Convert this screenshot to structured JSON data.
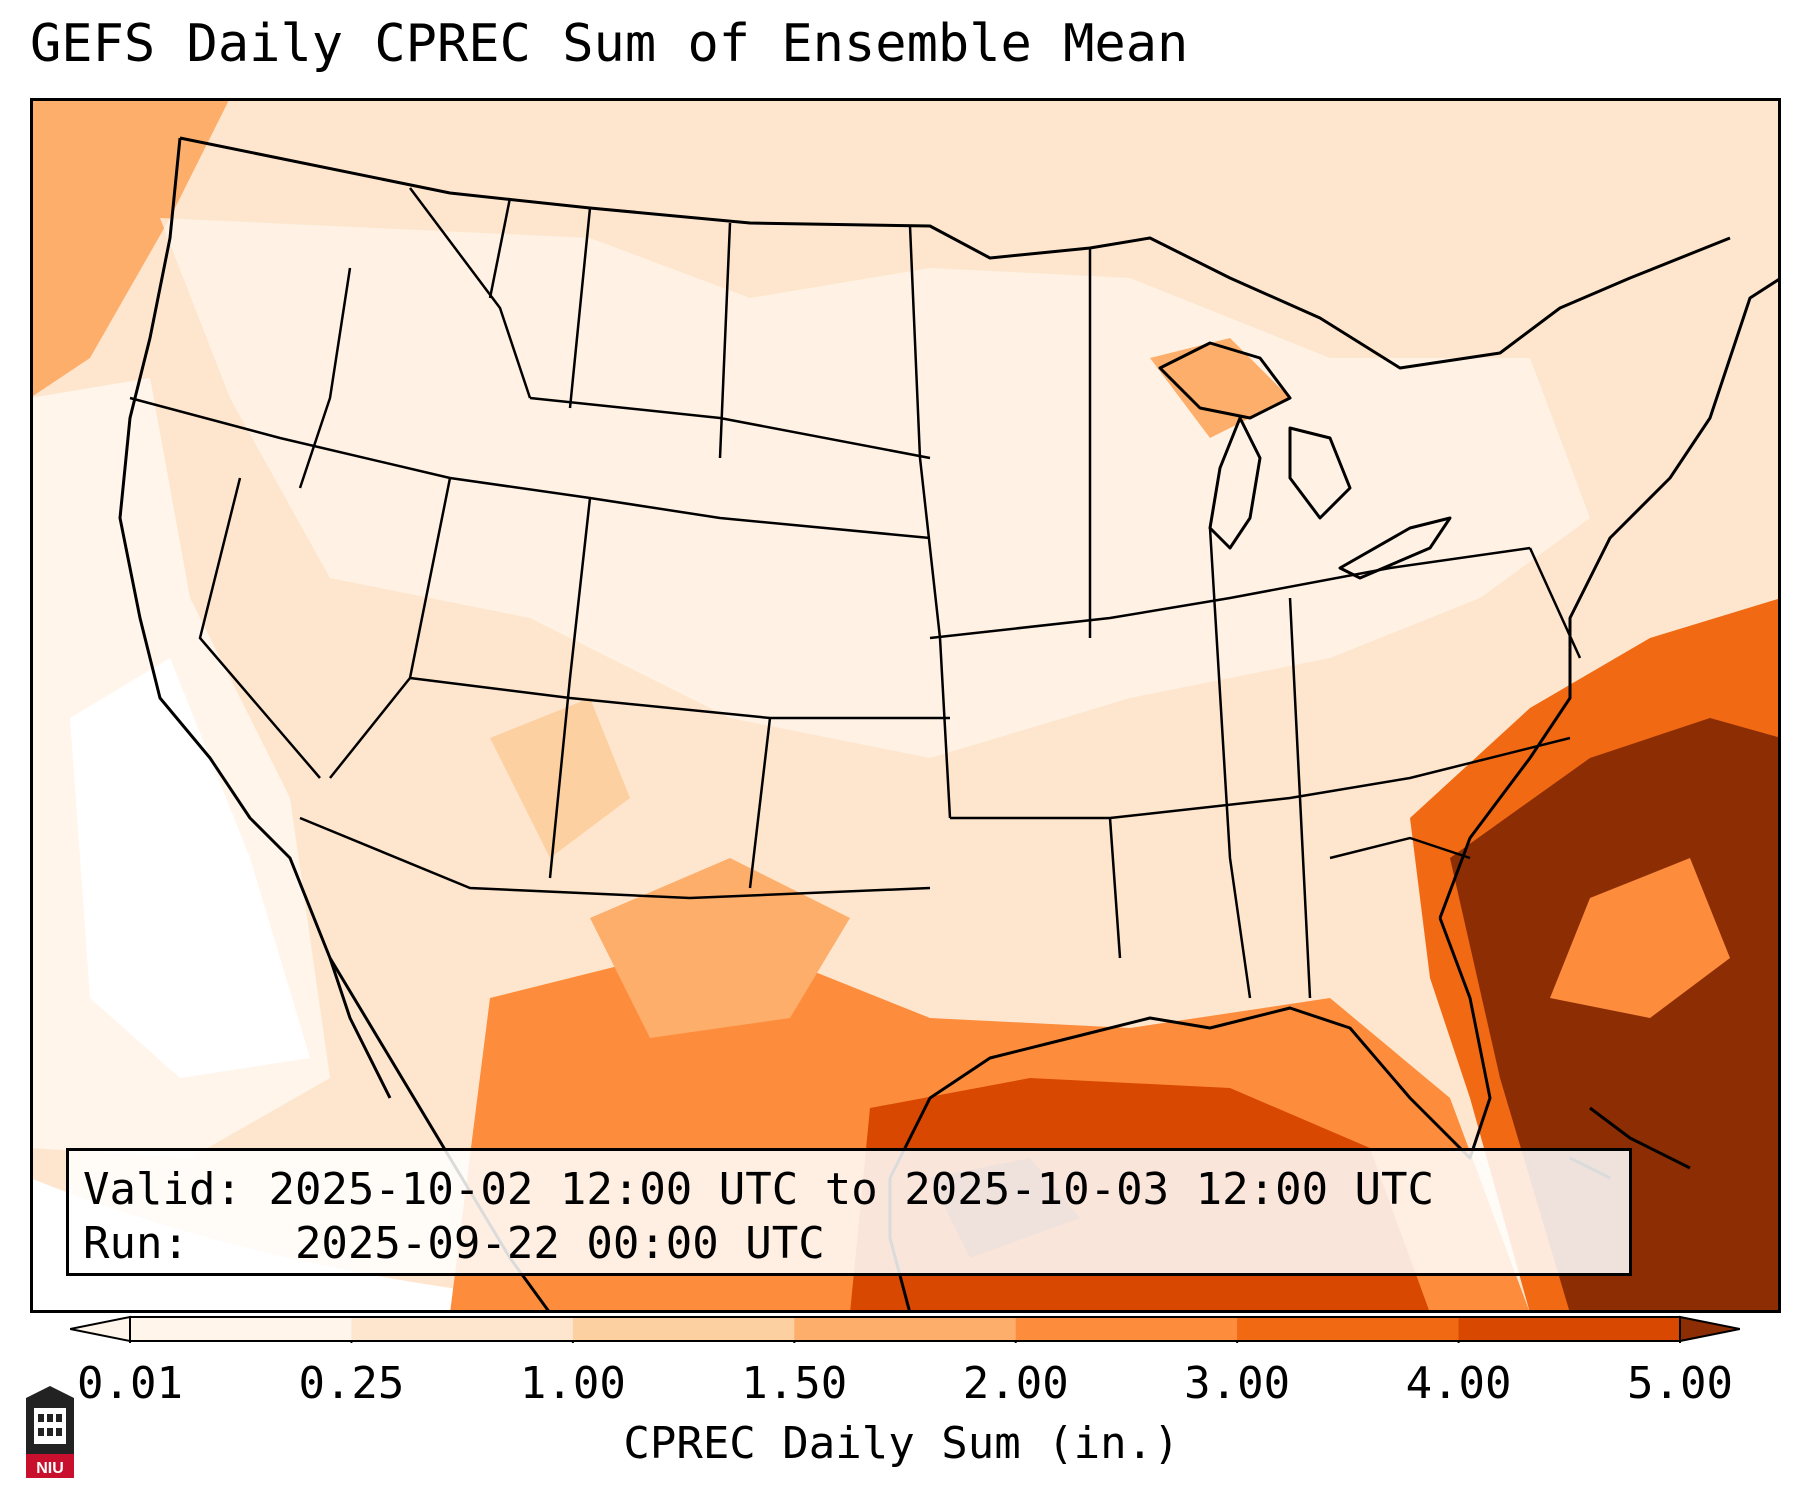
{
  "title": "GEFS Daily CPREC Sum of Ensemble Mean",
  "info": {
    "valid_label": "Valid:",
    "valid_value": "2025-10-02 12:00 UTC to 2025-10-03 12:00 UTC",
    "run_label": "Run:",
    "run_value": "2025-09-22 00:00 UTC"
  },
  "colorbar": {
    "label": "CPREC Daily Sum (in.)",
    "ticks": [
      "0.01",
      "0.25",
      "1.00",
      "1.50",
      "2.00",
      "3.00",
      "4.00",
      "5.00"
    ],
    "colors": [
      "#fff5eb",
      "#fee6ce",
      "#fdd0a2",
      "#fdae6b",
      "#fd8d3c",
      "#f16913",
      "#d94801",
      "#8c2d04"
    ],
    "extend": "both"
  },
  "logo": {
    "text": "NIU"
  },
  "map": {
    "projection": "Lambert conformal, CONUS",
    "ocean_color": "#fff5eb",
    "heavy_color": "#8c2d04"
  }
}
